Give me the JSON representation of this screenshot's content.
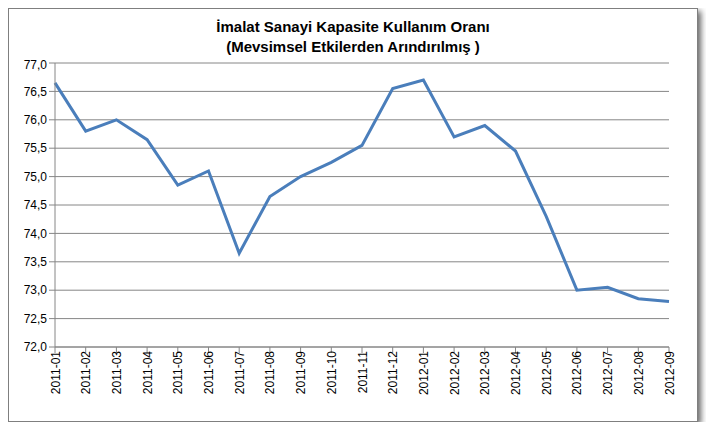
{
  "chart_data": {
    "type": "line",
    "title": "İmalat Sanayi Kapasite Kullanım Oranı",
    "subtitle": "(Mevsimsel Etkilerden Arındırılmış )",
    "categories": [
      "2011-01",
      "2011-02",
      "2011-03",
      "2011-04",
      "2011-05",
      "2011-06",
      "2011-07",
      "2011-08",
      "2011-09",
      "2011-10",
      "2011-11",
      "2011-12",
      "2012-01",
      "2012-02",
      "2012-03",
      "2012-04",
      "2012-05",
      "2012-06",
      "2012-07",
      "2012-08",
      "2012-09"
    ],
    "values": [
      76.65,
      75.8,
      76.0,
      75.65,
      74.85,
      75.1,
      73.65,
      74.65,
      75.0,
      75.25,
      75.55,
      76.55,
      76.7,
      75.7,
      75.9,
      75.45,
      74.3,
      73.0,
      73.05,
      72.85,
      72.8
    ],
    "color": "#4a7ebb",
    "ylim": [
      72,
      77
    ],
    "yticks": [
      {
        "value": 72,
        "label": "72,0"
      },
      {
        "value": 72.5,
        "label": "72,5"
      },
      {
        "value": 73,
        "label": "73,0"
      },
      {
        "value": 73.5,
        "label": "73,5"
      },
      {
        "value": 74,
        "label": "74,0"
      },
      {
        "value": 74.5,
        "label": "74,5"
      },
      {
        "value": 75,
        "label": "75,0"
      },
      {
        "value": 75.5,
        "label": "75,5"
      },
      {
        "value": 76,
        "label": "76,0"
      },
      {
        "value": 76.5,
        "label": "76,5"
      },
      {
        "value": 77,
        "label": "77,0"
      }
    ],
    "grid": true
  }
}
